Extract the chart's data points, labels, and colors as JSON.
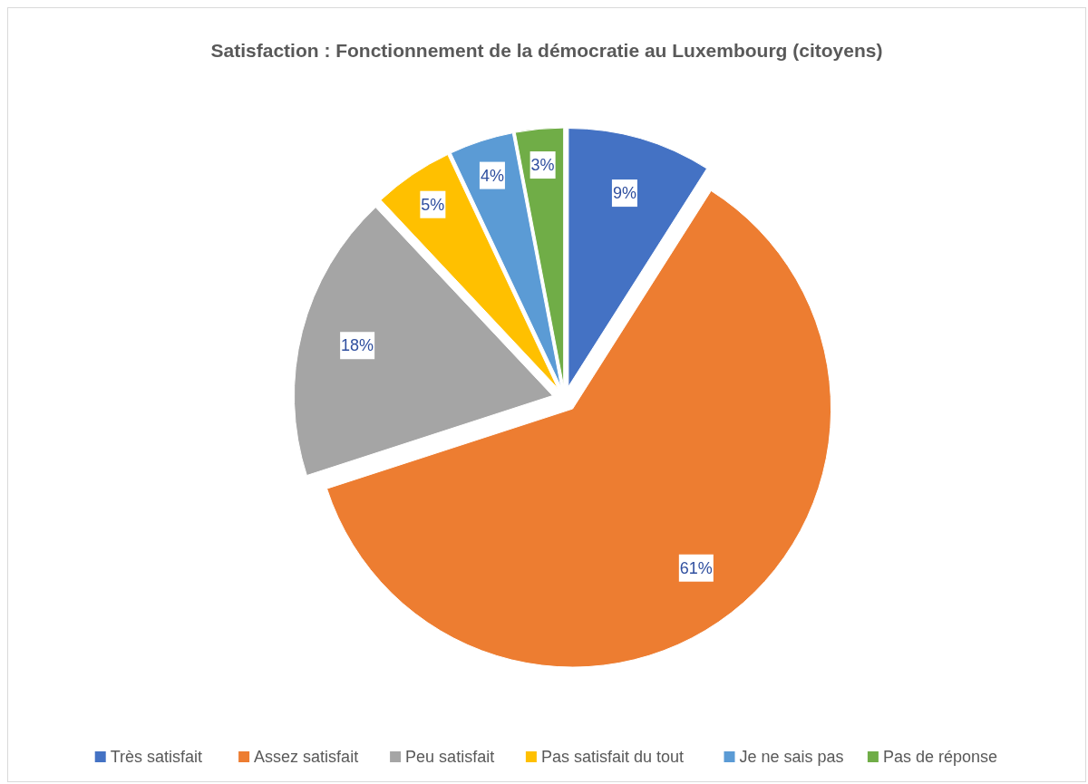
{
  "chart_data": {
    "type": "pie",
    "title": "Satisfaction : Fonctionnement de la démocratie au Luxembourg (citoyens)",
    "categories": [
      "Très satisfait",
      "Assez satisfait",
      "Peu satisfait",
      "Pas satisfait du tout",
      "Je ne sais pas",
      "Pas de réponse"
    ],
    "values": [
      9,
      61,
      18,
      5,
      4,
      3
    ],
    "colors": [
      "#4472c4",
      "#ed7d31",
      "#a5a5a5",
      "#ffc000",
      "#5b9bd5",
      "#70ad47"
    ],
    "value_labels": [
      "9%",
      "61%",
      "18%",
      "5%",
      "4%",
      "3%"
    ],
    "legend": "bottom"
  }
}
